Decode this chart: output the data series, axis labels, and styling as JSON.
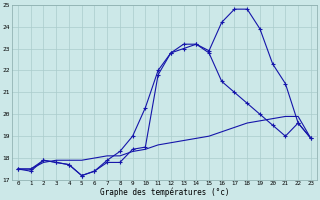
{
  "hours": [
    0,
    1,
    2,
    3,
    4,
    5,
    6,
    7,
    8,
    9,
    10,
    11,
    12,
    13,
    14,
    15,
    16,
    17,
    18,
    19,
    20,
    21,
    22,
    23
  ],
  "line_jagged": [
    17.5,
    17.4,
    17.9,
    17.8,
    17.7,
    17.2,
    17.4,
    17.8,
    17.8,
    18.4,
    18.5,
    21.8,
    22.8,
    23.2,
    23.2,
    22.9,
    24.2,
    24.8,
    24.8,
    23.9,
    22.3,
    21.4,
    19.6,
    18.9
  ],
  "line_smooth": [
    17.5,
    17.5,
    17.9,
    17.8,
    17.7,
    17.2,
    17.4,
    17.9,
    18.3,
    19.0,
    20.3,
    22.0,
    22.8,
    23.0,
    23.2,
    22.8,
    21.5,
    21.0,
    20.5,
    20.0,
    19.5,
    19.0,
    19.6,
    18.9
  ],
  "line_flat": [
    17.5,
    17.5,
    17.8,
    17.9,
    17.9,
    17.9,
    18.0,
    18.1,
    18.1,
    18.3,
    18.4,
    18.6,
    18.7,
    18.8,
    18.9,
    19.0,
    19.2,
    19.4,
    19.6,
    19.7,
    19.8,
    19.9,
    19.9,
    18.9
  ],
  "color": "#1515aa",
  "bg_color": "#cce8e8",
  "grid_color": "#aacccc",
  "xlabel": "Graphe des températures (°c)",
  "ylim": [
    17,
    25
  ],
  "xlim": [
    -0.5,
    23.5
  ],
  "yticks": [
    17,
    18,
    19,
    20,
    21,
    22,
    23,
    24,
    25
  ],
  "xticks": [
    0,
    1,
    2,
    3,
    4,
    5,
    6,
    7,
    8,
    9,
    10,
    11,
    12,
    13,
    14,
    15,
    16,
    17,
    18,
    19,
    20,
    21,
    22,
    23
  ]
}
